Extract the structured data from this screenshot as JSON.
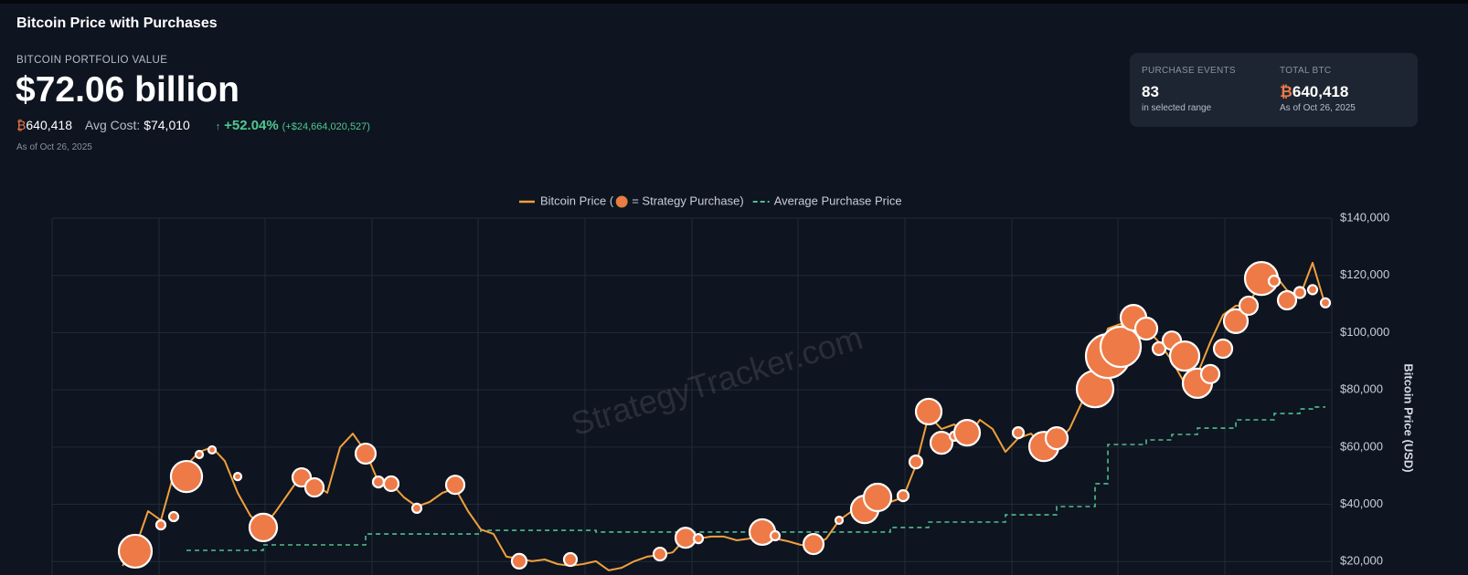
{
  "header": {
    "title": "Bitcoin Price with Purchases",
    "portfolio_label": "BITCOIN PORTFOLIO VALUE",
    "portfolio_value": "$72.06 billion",
    "btc_symbol": "₿",
    "btc_amount": "640,418",
    "avg_cost_label": "Avg Cost:",
    "avg_cost": "$74,010",
    "change_arrow": "↑",
    "change_pct": "+52.04%",
    "change_usd": "(+$24,664,020,527)",
    "as_of": "As of Oct 26, 2025"
  },
  "stats": [
    {
      "label": "PURCHASE EVENTS",
      "value": "83",
      "note": "in selected range"
    },
    {
      "label": "TOTAL BTC",
      "symbol": "₿",
      "value": "640,418",
      "note": "As of Oct 26, 2025"
    }
  ],
  "chart_data": {
    "type": "line",
    "watermark": "StrategyTracker.com",
    "y_label": "Bitcoin Price (USD)",
    "grid": true,
    "ylim": [
      15000,
      140000
    ],
    "yticks": [
      {
        "value": 20000,
        "label": "$20,000"
      },
      {
        "value": 40000,
        "label": "$40,000"
      },
      {
        "value": 60000,
        "label": "$60,000"
      },
      {
        "value": 80000,
        "label": "$80,000"
      },
      {
        "value": 100000,
        "label": "$100,000"
      },
      {
        "value": 120000,
        "label": "$120,000"
      },
      {
        "value": 140000,
        "label": "$140,000"
      }
    ],
    "categories": [
      null,
      null,
      null,
      null,
      null,
      null,
      null,
      null,
      null,
      null,
      null,
      null,
      null,
      null,
      null,
      null,
      null,
      null,
      null,
      null,
      null,
      null,
      null,
      null,
      null,
      null,
      null,
      null,
      null,
      null,
      null,
      null,
      null,
      null,
      null,
      null,
      null,
      null,
      null,
      null,
      null,
      null,
      null,
      null,
      null,
      null,
      null,
      null,
      null,
      null,
      null,
      null,
      null,
      null,
      null,
      null,
      null,
      null,
      null,
      null,
      null,
      null,
      null,
      null,
      null,
      null,
      null,
      null,
      null,
      null,
      null,
      null,
      null,
      null,
      null,
      null,
      null,
      null,
      null,
      null,
      null,
      null,
      null,
      null,
      null,
      null,
      null,
      null,
      null,
      null,
      null,
      null,
      null,
      null,
      null,
      null,
      null,
      null,
      null,
      null
    ],
    "series": [
      {
        "name": "Bitcoin Price (",
        "type": "line",
        "color": "#f0a03c",
        "values": [
          null,
          null,
          null,
          null,
          null,
          18500,
          24800,
          37600,
          34400,
          50400,
          53600,
          58300,
          59900,
          55100,
          44000,
          36000,
          31900,
          37600,
          44000,
          50400,
          47200,
          44000,
          59900,
          64700,
          58300,
          47800,
          47200,
          42400,
          39200,
          40800,
          44000,
          45600,
          37600,
          31200,
          29600,
          21700,
          21000,
          20100,
          20700,
          19100,
          18500,
          19100,
          20100,
          16900,
          17800,
          20100,
          21700,
          22300,
          23200,
          28000,
          28000,
          28700,
          28700,
          27400,
          28000,
          29600,
          28000,
          27100,
          25800,
          25500,
          28000,
          34400,
          37600,
          40800,
          42400,
          40800,
          42400,
          53600,
          71100,
          66300,
          67900,
          63100,
          69500,
          66300,
          58300,
          63100,
          64700,
          59900,
          61500,
          66300,
          75900,
          85500,
          101400,
          103000,
          96600,
          101400,
          96600,
          90200,
          82300,
          85500,
          96600,
          106200,
          109400,
          109400,
          118900,
          120500,
          114800,
          112600,
          124400,
          109400
        ]
      },
      {
        "name": "= Strategy Purchase)",
        "type": "scatter",
        "color": "#ee7a47",
        "values": [
          null,
          null,
          null,
          null,
          null,
          null,
          23600,
          null,
          32800,
          35700,
          49700,
          57400,
          59000,
          null,
          49700,
          null,
          31900,
          null,
          null,
          49400,
          45900,
          null,
          null,
          null,
          57700,
          47800,
          47200,
          null,
          38600,
          null,
          null,
          46800,
          null,
          null,
          null,
          null,
          20100,
          null,
          null,
          null,
          20700,
          null,
          null,
          null,
          null,
          null,
          null,
          22600,
          null,
          28300,
          28000,
          null,
          null,
          null,
          null,
          30300,
          29000,
          null,
          null,
          26100,
          null,
          34400,
          null,
          38200,
          42400,
          null,
          43000,
          54800,
          72400,
          61500,
          63800,
          65000,
          null,
          null,
          null,
          65000,
          null,
          60200,
          63100,
          null,
          null,
          80300,
          91800,
          95000,
          105200,
          101400,
          94400,
          97200,
          91800,
          82300,
          85500,
          94400,
          104000,
          109400,
          118900,
          118000,
          111300,
          114000,
          115000,
          110400
        ],
        "sizes": [
          null,
          null,
          null,
          null,
          null,
          null,
          16200,
          null,
          1250,
          1250,
          14500,
          800,
          800,
          null,
          800,
          null,
          11300,
          null,
          null,
          5000,
          5000,
          null,
          null,
          null,
          6000,
          1800,
          3200,
          null,
          1250,
          null,
          null,
          5000,
          null,
          null,
          null,
          null,
          3200,
          null,
          null,
          null,
          2450,
          null,
          null,
          null,
          null,
          null,
          null,
          2450,
          null,
          6000,
          1250,
          null,
          null,
          null,
          null,
          9800,
          1250,
          null,
          null,
          6000,
          null,
          800,
          null,
          11300,
          11300,
          null,
          1800,
          2450,
          9800,
          7200,
          1250,
          9800,
          null,
          null,
          null,
          1800,
          null,
          12800,
          7200,
          null,
          null,
          20000,
          28800,
          24200,
          9800,
          7200,
          2450,
          5000,
          12800,
          12800,
          5000,
          5000,
          8450,
          5000,
          16200,
          1800,
          5000,
          1800,
          1250,
          1250
        ]
      },
      {
        "name": "Average Purchase Price",
        "type": "step",
        "color": "#4fbf8f",
        "values": [
          null,
          null,
          null,
          null,
          null,
          null,
          null,
          null,
          null,
          null,
          23900,
          23900,
          23900,
          23900,
          23900,
          23900,
          25800,
          25800,
          25800,
          25800,
          25800,
          25800,
          25800,
          25800,
          29600,
          29600,
          29600,
          29600,
          29600,
          29600,
          29600,
          29600,
          29600,
          30900,
          30900,
          30900,
          30900,
          30900,
          30900,
          30900,
          30900,
          30900,
          30300,
          30300,
          30300,
          30300,
          30300,
          30300,
          30300,
          30300,
          30300,
          30300,
          30300,
          30300,
          30300,
          30300,
          30300,
          30300,
          30300,
          30300,
          30300,
          30300,
          30300,
          30300,
          30300,
          31900,
          31900,
          31900,
          33800,
          33800,
          33800,
          33800,
          33800,
          33800,
          36300,
          36300,
          36300,
          36300,
          39200,
          39200,
          39200,
          47200,
          60900,
          60900,
          60900,
          62500,
          62500,
          64400,
          64400,
          66600,
          66600,
          66600,
          69500,
          69500,
          69500,
          71700,
          71700,
          73300,
          74000,
          74000
        ]
      }
    ]
  }
}
